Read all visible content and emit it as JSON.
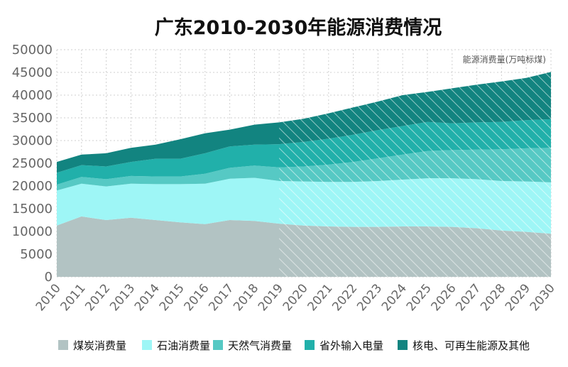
{
  "chart_data": {
    "type": "area",
    "stacked": true,
    "title": "广东2010-2030年能源消费情况",
    "unit_label": "能源消费量(万吨标煤)",
    "x": [
      "2010",
      "2011",
      "2012",
      "2013",
      "2014",
      "2015",
      "2016",
      "2017",
      "2018",
      "2019",
      "2020",
      "2021",
      "2022",
      "2023",
      "2024",
      "2025",
      "2026",
      "2027",
      "2028",
      "2029",
      "2030"
    ],
    "ylim": [
      0,
      50000
    ],
    "yticks": [
      0,
      5000,
      10000,
      15000,
      20000,
      25000,
      30000,
      35000,
      40000,
      45000,
      50000
    ],
    "forecast_start": "2019",
    "grid": true,
    "legend_position": "bottom",
    "series": [
      {
        "name": "煤炭消费量",
        "color": "#b2c3c3",
        "values": [
          11300,
          13300,
          12500,
          13000,
          12500,
          12000,
          11600,
          12500,
          12300,
          11700,
          11300,
          11100,
          11000,
          11000,
          11100,
          11100,
          11000,
          10700,
          10200,
          9900,
          9500
        ]
      },
      {
        "name": "石油消费量",
        "color": "#9ef6f6",
        "values": [
          7700,
          7200,
          7400,
          7500,
          7900,
          8400,
          8900,
          9100,
          9500,
          9400,
          9700,
          9800,
          9900,
          10100,
          10300,
          10600,
          10700,
          10800,
          10900,
          11100,
          11300
        ]
      },
      {
        "name": "天然气消费量",
        "color": "#56c9c4",
        "values": [
          1300,
          1500,
          1600,
          1700,
          1700,
          1700,
          2200,
          2400,
          2700,
          3000,
          3300,
          3800,
          4400,
          5000,
          5500,
          6000,
          6200,
          6500,
          7000,
          7300,
          7600
        ]
      },
      {
        "name": "省外输入电量",
        "color": "#21b0aa",
        "values": [
          2600,
          2600,
          2800,
          3100,
          3900,
          3900,
          4500,
          4700,
          4600,
          5100,
          5400,
          5700,
          6000,
          6200,
          6300,
          6400,
          5900,
          6000,
          6000,
          6200,
          6300
        ]
      },
      {
        "name": "核电、可再生能源及其他",
        "color": "#128480",
        "values": [
          2400,
          2300,
          2900,
          3100,
          3100,
          4300,
          4400,
          3700,
          4400,
          4800,
          5100,
          5600,
          6000,
          6300,
          6800,
          6600,
          7700,
          8300,
          8900,
          9300,
          10400
        ]
      }
    ]
  }
}
